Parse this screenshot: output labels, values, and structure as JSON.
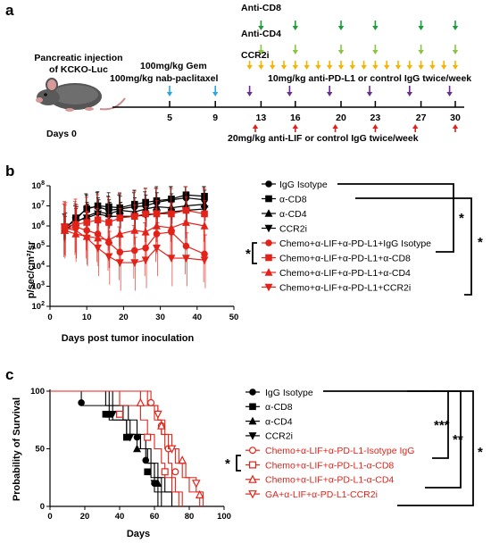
{
  "panel_a": {
    "label": "a",
    "injection_text": [
      "Pancreatic injection",
      "of KCKO-Luc"
    ],
    "day0_label": "Days 0",
    "treatments": {
      "anti_cd8": "Anti-CD8",
      "anti_cd4": "Anti-CD4",
      "ccr2i": "CCR2i",
      "gem": "100mg/kg Gem",
      "nab": "100mg/kg nab-paclitaxel",
      "pdl1": "10mg/kg  anti-PD-L1 or control IgG twice/week",
      "lif": "20mg/kg anti-LIF or control IgG twice/week"
    },
    "days": [
      {
        "d": 5,
        "label": "5"
      },
      {
        "d": 9,
        "label": "9"
      },
      {
        "d": 13,
        "label": "13"
      },
      {
        "d": 16,
        "label": "16"
      },
      {
        "d": 20,
        "label": "20"
      },
      {
        "d": 23,
        "label": "23"
      },
      {
        "d": 27,
        "label": "27"
      },
      {
        "d": 30,
        "label": "30"
      }
    ],
    "colors": {
      "cd8": "#1a9e3a",
      "cd4": "#8bc43f",
      "ccr2i": "#f5b400",
      "chemo": "#29a8e0",
      "pdl1": "#6a2c91",
      "lif": "#e02020"
    }
  },
  "panel_b": {
    "label": "b",
    "significance": [
      "*",
      "*",
      "*"
    ]
  },
  "panel_c": {
    "label": "c",
    "significance": [
      "***",
      "**",
      "*",
      "*"
    ]
  },
  "chart_data": [
    {
      "type": "line",
      "panel": "b",
      "xlabel": "Days post tumor inoculation",
      "ylabel": "p/sec/cm²/sr",
      "xlim": [
        0,
        50
      ],
      "xticks": [
        0,
        10,
        20,
        30,
        40,
        50
      ],
      "y_scale": "log",
      "ylim": [
        100,
        100000000
      ],
      "yticks": [
        {
          "v": 100,
          "base": "10",
          "exp": "2"
        },
        {
          "v": 1000,
          "base": "10",
          "exp": "3"
        },
        {
          "v": 10000,
          "base": "10",
          "exp": "4"
        },
        {
          "v": 100000,
          "base": "10",
          "exp": "5"
        },
        {
          "v": 1000000,
          "base": "10",
          "exp": "6"
        },
        {
          "v": 10000000,
          "base": "10",
          "exp": "7"
        },
        {
          "v": 100000000,
          "base": "10",
          "exp": "8"
        }
      ],
      "x": [
        4,
        7,
        10,
        13,
        16,
        19,
        23,
        26,
        29,
        33,
        37,
        42
      ],
      "legend_position": "right",
      "series": [
        {
          "name": "IgG Isotype",
          "color": "#000000",
          "marker": "circle",
          "values": [
            800000,
            2000000,
            8000000,
            9000000,
            6000000,
            7000000,
            9000000,
            10000000,
            15000000,
            20000000,
            25000000,
            20000000
          ]
        },
        {
          "name": "α-CD8",
          "color": "#000000",
          "marker": "square",
          "values": [
            700000,
            2500000,
            7000000,
            10000000,
            9000000,
            8000000,
            12000000,
            15000000,
            18000000,
            22000000,
            35000000,
            30000000
          ]
        },
        {
          "name": "α-CD4",
          "color": "#000000",
          "marker": "triangle",
          "values": [
            600000,
            1500000,
            3000000,
            5000000,
            4000000,
            6000000,
            5000000,
            7000000,
            9000000,
            8000000,
            10000000,
            12000000
          ]
        },
        {
          "name": "CCR2i",
          "color": "#000000",
          "marker": "triangle-down",
          "values": [
            900000,
            1800000,
            2500000,
            4000000,
            3000000,
            3000000,
            3000000,
            3500000,
            4000000,
            5000000,
            6000000,
            7000000
          ]
        },
        {
          "name": "Chemo+α-LIF+α-PD-L1+IgG Isotype",
          "color": "#e32219",
          "marker": "circle",
          "values": [
            700000,
            900000,
            600000,
            400000,
            150000,
            50000,
            60000,
            80000,
            400000,
            500000,
            100000,
            40000
          ]
        },
        {
          "name": "Chemo+α-LIF+α-PD-L1+α-CD8",
          "color": "#e32219",
          "marker": "square",
          "values": [
            900000,
            1200000,
            1500000,
            2000000,
            1500000,
            2500000,
            3000000,
            4000000,
            4000000,
            4000000,
            6000000,
            4000000
          ]
        },
        {
          "name": "Chemo+α-LIF+α-PD-L1+α-CD4",
          "color": "#e32219",
          "marker": "triangle",
          "values": [
            600000,
            400000,
            300000,
            250000,
            200000,
            400000,
            600000,
            500000,
            1000000,
            800000,
            1500000,
            1000000
          ]
        },
        {
          "name": "Chemo+α-LIF+α-PD-L1+CCR2i",
          "color": "#e32219",
          "marker": "triangle-down",
          "values": [
            800000,
            600000,
            250000,
            80000,
            30000,
            15000,
            15000,
            20000,
            80000,
            25000,
            25000,
            20000
          ]
        }
      ]
    },
    {
      "type": "line",
      "panel": "c",
      "xlabel": "Days",
      "ylabel": "Probability of Survival",
      "xlim": [
        0,
        100
      ],
      "xticks": [
        0,
        20,
        40,
        60,
        80,
        100
      ],
      "ylim": [
        0,
        100
      ],
      "yticks": [
        0,
        50,
        100
      ],
      "legend_position": "right",
      "series": [
        {
          "name": "IgG Isotype",
          "color": "#000000",
          "marker": "circle",
          "open": false,
          "times": [
            18,
            34,
            44,
            50,
            55,
            58,
            60,
            62
          ],
          "points": [
            [
              18,
              90
            ],
            [
              50,
              60
            ],
            [
              55,
              40
            ],
            [
              60,
              20
            ]
          ]
        },
        {
          "name": "α-CD8",
          "color": "#000000",
          "marker": "square",
          "open": false,
          "times": [
            32,
            36,
            44,
            52,
            56,
            60,
            62,
            64
          ],
          "points": [
            [
              32,
              80
            ],
            [
              44,
              60
            ],
            [
              56,
              30
            ]
          ]
        },
        {
          "name": "α-CD4",
          "color": "#000000",
          "marker": "triangle",
          "open": false,
          "times": [
            34,
            45,
            50,
            55,
            58,
            62,
            66,
            70
          ],
          "points": [
            [
              34,
              80
            ],
            [
              50,
              50
            ],
            [
              62,
              20
            ]
          ]
        },
        {
          "name": "CCR2i",
          "color": "#000000",
          "marker": "triangle-down",
          "open": false,
          "times": [
            36,
            42,
            46,
            52,
            56,
            60,
            64,
            70
          ],
          "points": [
            [
              36,
              80
            ],
            [
              46,
              60
            ],
            [
              60,
              20
            ]
          ]
        },
        {
          "name": "Chemo+α-LIF+α-PD-L1-Isotype IgG",
          "color": "#e32219",
          "marker": "circle",
          "open": true,
          "times": [
            58,
            62,
            64,
            66,
            68,
            70,
            72,
            74
          ],
          "points": [
            [
              58,
              90
            ],
            [
              64,
              70
            ],
            [
              68,
              50
            ],
            [
              72,
              30
            ]
          ]
        },
        {
          "name": "Chemo+α-LIF+α-PD-L1-α-CD8",
          "color": "#e32219",
          "marker": "square",
          "open": true,
          "times": [
            40,
            52,
            56,
            60,
            64,
            66,
            70,
            76
          ],
          "points": [
            [
              40,
              80
            ],
            [
              56,
              60
            ],
            [
              66,
              30
            ]
          ]
        },
        {
          "name": "Chemo+α-LIF+α-PD-L1-α-CD4",
          "color": "#e32219",
          "marker": "triangle",
          "open": true,
          "times": [
            52,
            60,
            64,
            68,
            72,
            76,
            80,
            86
          ],
          "points": [
            [
              52,
              90
            ],
            [
              64,
              70
            ],
            [
              76,
              40
            ],
            [
              86,
              10
            ]
          ]
        },
        {
          "name": "GA+α-LIF+α-PD-L1-CCR2i",
          "color": "#e32219",
          "marker": "triangle-down",
          "open": true,
          "times": [
            56,
            62,
            66,
            70,
            74,
            78,
            84,
            88
          ],
          "points": [
            [
              62,
              80
            ],
            [
              70,
              50
            ],
            [
              84,
              20
            ]
          ]
        }
      ]
    }
  ]
}
